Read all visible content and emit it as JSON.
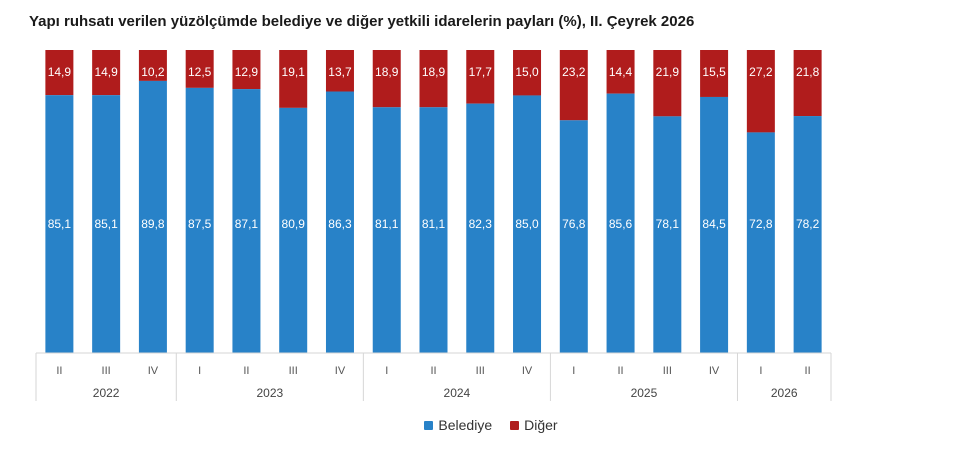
{
  "chart_data": {
    "type": "bar",
    "stacked": true,
    "title": "Yapı ruhsatı verilen yüzölçümde belediye ve diğer yetkili idarelerin payları (%), II. Çeyrek 2026",
    "categories": [
      "II",
      "III",
      "IV",
      "I",
      "II",
      "III",
      "IV",
      "I",
      "II",
      "III",
      "IV",
      "I",
      "II",
      "III",
      "IV",
      "I",
      "II"
    ],
    "groups": [
      {
        "label": "2022",
        "count": 3
      },
      {
        "label": "2023",
        "count": 4
      },
      {
        "label": "2024",
        "count": 4
      },
      {
        "label": "2025",
        "count": 4
      },
      {
        "label": "2026",
        "count": 2
      }
    ],
    "series": [
      {
        "name": "Belediye",
        "color": "#2882c8",
        "values": [
          85.1,
          85.1,
          89.8,
          87.5,
          87.1,
          80.9,
          86.3,
          81.1,
          81.1,
          82.3,
          85.0,
          76.8,
          85.6,
          78.1,
          84.5,
          72.8,
          78.2
        ],
        "labels": [
          "85,1",
          "85,1",
          "89,8",
          "87,5",
          "87,1",
          "80,9",
          "86,3",
          "81,1",
          "81,1",
          "82,3",
          "85,0",
          "76,8",
          "85,6",
          "78,1",
          "84,5",
          "72,8",
          "78,2"
        ]
      },
      {
        "name": "Diğer",
        "color": "#b01c1c",
        "values": [
          14.9,
          14.9,
          10.2,
          12.5,
          12.9,
          19.1,
          13.7,
          18.9,
          18.9,
          17.7,
          15.0,
          23.2,
          14.4,
          21.9,
          15.5,
          27.2,
          21.8
        ],
        "labels": [
          "14,9",
          "14,9",
          "10,2",
          "12,5",
          "12,9",
          "19,1",
          "13,7",
          "18,9",
          "18,9",
          "17,7",
          "15,0",
          "23,2",
          "14,4",
          "21,9",
          "15,5",
          "27,2",
          "21,8"
        ]
      }
    ],
    "ylim": [
      0,
      100
    ],
    "grid": false,
    "legend_position": "bottom"
  }
}
